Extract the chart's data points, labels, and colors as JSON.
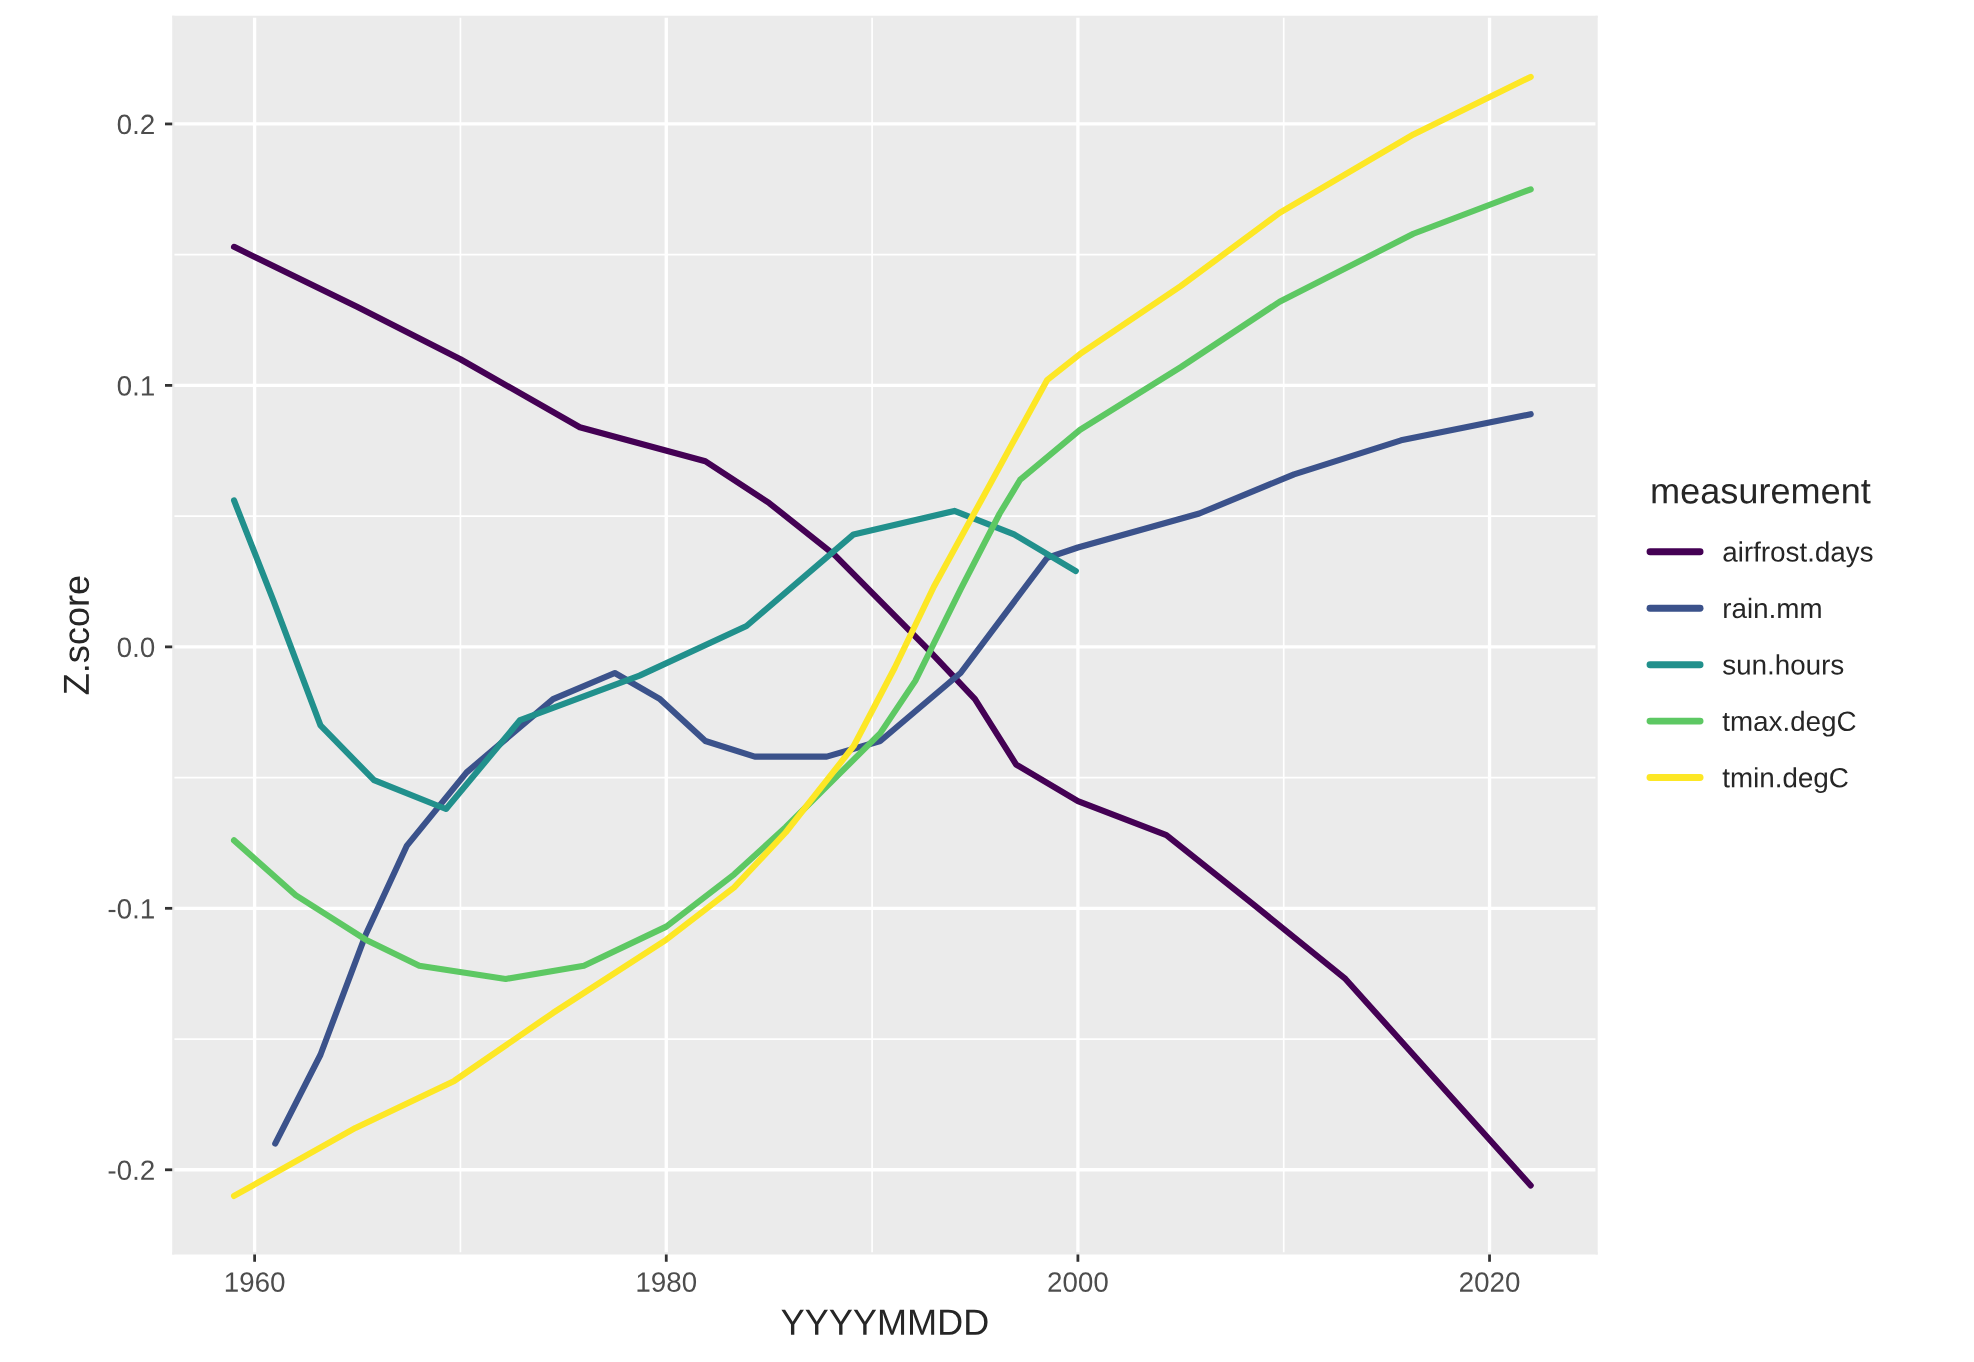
{
  "chart_data": {
    "type": "line",
    "xlabel": "YYYYMMDD",
    "ylabel": "Z.score",
    "legend_title": "measurement",
    "xlim": [
      1956.05,
      2025.2
    ],
    "ylim": [
      -0.232,
      0.241
    ],
    "xticks": [
      1960,
      1980,
      2000,
      2020
    ],
    "yticks": [
      -0.2,
      -0.1,
      {
        "value": 0,
        "label": "0.0"
      },
      0.1,
      0.2
    ],
    "grid": true,
    "legend": "right",
    "line_style": "solid",
    "marker": "none",
    "series": [
      {
        "name": "airfrost.days",
        "color": "#440154",
        "x": [
          1959,
          1965,
          1970,
          1975.8,
          1981.9,
          1985,
          1988.2,
          1992.6,
          1995,
          1997,
          2000,
          2004.3,
          2008.6,
          2013,
          2016.3,
          2022
        ],
        "values": [
          0.153,
          0.13,
          0.11,
          0.084,
          0.071,
          0.055,
          0.035,
          0.0,
          -0.02,
          -0.045,
          -0.059,
          -0.072,
          -0.099,
          -0.127,
          -0.156,
          -0.206
        ]
      },
      {
        "name": "rain.mm",
        "color": "#3b528b",
        "x": [
          1961,
          1963.2,
          1965.4,
          1967.4,
          1970.3,
          1974.5,
          1977.5,
          1979.7,
          1981.9,
          1984.3,
          1987.8,
          1990.4,
          1994.3,
          1998.5,
          2000,
          2005.9,
          2010.5,
          2015.7,
          2022
        ],
        "values": [
          -0.19,
          -0.156,
          -0.11,
          -0.076,
          -0.048,
          -0.02,
          -0.01,
          -0.02,
          -0.036,
          -0.042,
          -0.042,
          -0.036,
          -0.01,
          0.034,
          0.038,
          0.051,
          0.066,
          0.079,
          0.089
        ]
      },
      {
        "name": "sun.hours",
        "color": "#21908c",
        "x": [
          1959,
          1960.9,
          1963.2,
          1965.8,
          1969.3,
          1972.9,
          1978.7,
          1983.9,
          1989.1,
          1994,
          1996.9,
          1999.9
        ],
        "values": [
          0.056,
          0.018,
          -0.03,
          -0.051,
          -0.062,
          -0.028,
          -0.011,
          0.008,
          0.043,
          0.052,
          0.043,
          0.029
        ]
      },
      {
        "name": "tmax.degC",
        "color": "#5dc863",
        "x": [
          1959,
          1962,
          1965.4,
          1968,
          1972.2,
          1976,
          1980,
          1983.3,
          1985.8,
          1990.4,
          1992.1,
          1994.3,
          1996.2,
          1997.2,
          2000.1,
          2005,
          2009.8,
          2016.3,
          2022
        ],
        "values": [
          -0.074,
          -0.095,
          -0.112,
          -0.122,
          -0.127,
          -0.122,
          -0.107,
          -0.087,
          -0.069,
          -0.033,
          -0.013,
          0.022,
          0.051,
          0.064,
          0.083,
          0.107,
          0.132,
          0.158,
          0.175
        ]
      },
      {
        "name": "tmin.degC",
        "color": "#fde725",
        "x": [
          1959,
          1964.9,
          1969.7,
          1974.5,
          1980,
          1983.3,
          1985.8,
          1989.1,
          1991.1,
          1993,
          1995.3,
          1998.5,
          2000.1,
          2005,
          2009.8,
          2016.3,
          2022
        ],
        "values": [
          -0.21,
          -0.184,
          -0.166,
          -0.14,
          -0.112,
          -0.092,
          -0.071,
          -0.038,
          -0.008,
          0.023,
          0.056,
          0.102,
          0.112,
          0.138,
          0.166,
          0.196,
          0.218
        ]
      }
    ]
  }
}
